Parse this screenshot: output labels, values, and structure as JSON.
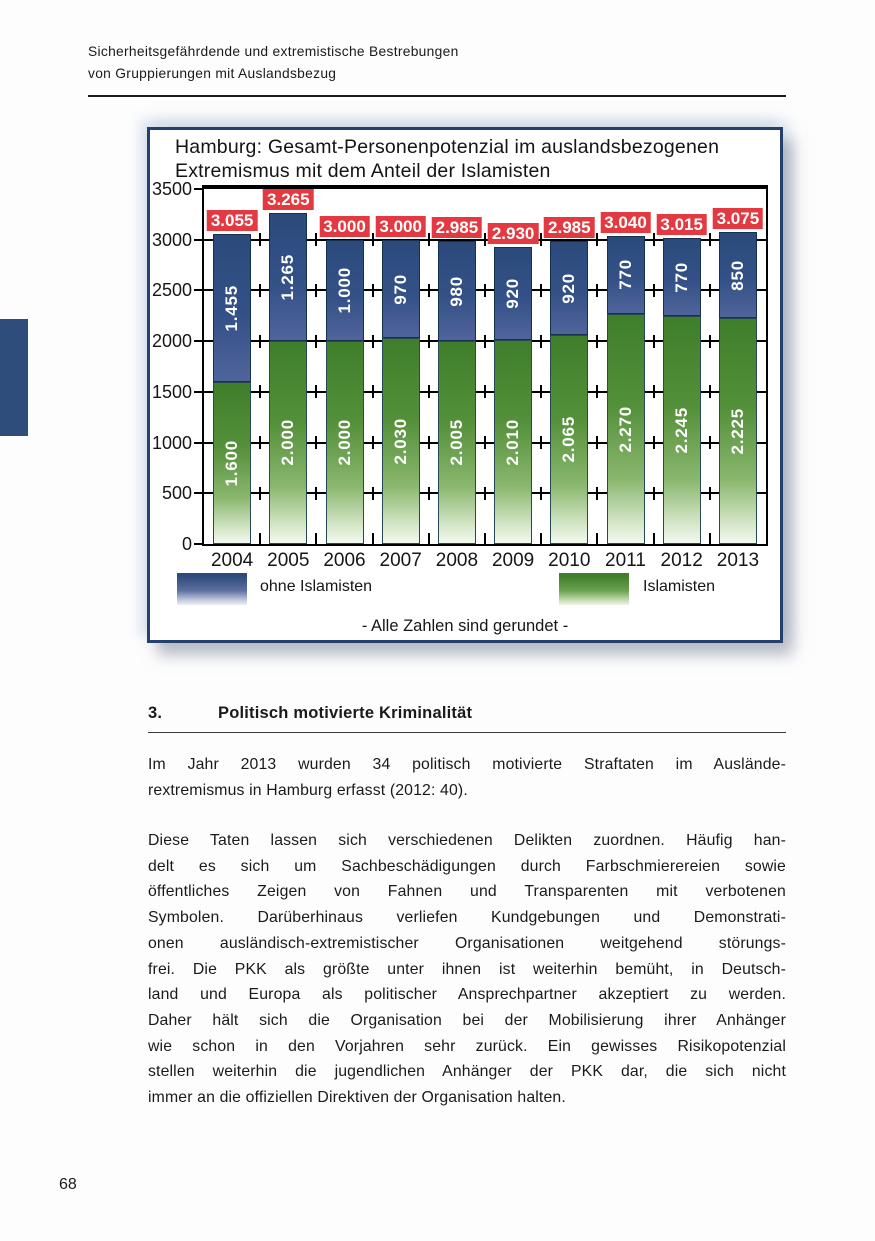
{
  "page": {
    "header_line1": "Sicherheitsgefährdende und extremistische Bestrebungen",
    "header_line2": "von Gruppierungen mit Auslandsbezug",
    "page_number": "68"
  },
  "chart": {
    "title_line1": "Hamburg: Gesamt-Personenpotenzial im auslandsbezogenen",
    "title_line2": "Extremismus mit dem Anteil der Islamisten",
    "footnote": "- Alle Zahlen sind gerundet -",
    "legend": [
      {
        "label": "ohne Islamisten",
        "color": "#2e4d7b"
      },
      {
        "label": "Islamisten",
        "color": "#4a8c33"
      }
    ]
  },
  "chart_data": {
    "type": "bar",
    "stacked": true,
    "title": "Hamburg: Gesamt-Personenpotenzial im auslandsbezogenen Extremismus mit dem Anteil der Islamisten",
    "xlabel": "",
    "ylabel": "",
    "ylim": [
      0,
      3500
    ],
    "ytick_step": 500,
    "yticks": [
      "0",
      "500",
      "1000",
      "1500",
      "2000",
      "2500",
      "3000",
      "3500"
    ],
    "grid": true,
    "legend_position": "bottom",
    "categories": [
      "2004",
      "2005",
      "2006",
      "2007",
      "2008",
      "2009",
      "2010",
      "2011",
      "2012",
      "2013"
    ],
    "series": [
      {
        "name": "Islamisten",
        "color": "#4a8c33",
        "values": [
          1600,
          2000,
          2000,
          2030,
          2005,
          2010,
          2065,
          2270,
          2245,
          2225
        ],
        "labels": [
          "1.600",
          "2.000",
          "2.000",
          "2.030",
          "2.005",
          "2.010",
          "2.065",
          "2.270",
          "2.245",
          "2.225"
        ]
      },
      {
        "name": "ohne Islamisten",
        "color": "#2e4d7b",
        "values": [
          1455,
          1265,
          1000,
          970,
          980,
          920,
          920,
          770,
          770,
          850
        ],
        "labels": [
          "1.455",
          "1.265",
          "1.000",
          "970",
          "980",
          "920",
          "920",
          "770",
          "770",
          "850"
        ]
      }
    ],
    "totals": [
      3055,
      3265,
      3000,
      3000,
      2985,
      2930,
      2985,
      3040,
      3015,
      3075
    ],
    "total_labels": [
      "3.055",
      "3.265",
      "3.000",
      "3.000",
      "2.985",
      "2.930",
      "2.985",
      "3.040",
      "3.015",
      "3.075"
    ],
    "total_label_color": "#e23a40"
  },
  "section": {
    "number": "3.",
    "title": "Politisch motivierte Kriminalität",
    "paragraph1_lines": [
      "Im Jahr 2013 wurden 34 politisch motivierte Straftaten im Auslände-",
      "rextremismus in Hamburg erfasst (2012: 40)."
    ],
    "paragraph2_lines": [
      "Diese Taten lassen sich verschiedenen Delikten zuordnen. Häufig han-",
      "delt es sich um Sachbeschädigungen durch Farbschmierereien sowie",
      "öffentliches Zeigen von Fahnen und Transparenten mit verbotenen",
      "Symbolen. Darüberhinaus verliefen Kundgebungen und Demonstrati-",
      "onen ausländisch-extremistischer Organisationen weitgehend störungs-",
      "frei. Die PKK als größte unter ihnen ist weiterhin bemüht, in Deutsch-",
      "land und Europa als politischer Ansprechpartner akzeptiert zu werden.",
      "Daher hält sich die Organisation bei der Mobilisierung ihrer Anhänger",
      "wie schon in den Vorjahren sehr zurück. Ein gewisses Risikopotenzial",
      "stellen weiterhin die jugendlichen Anhänger der PKK dar, die sich nicht",
      "immer an die offiziellen Direktiven der Organisation halten."
    ]
  }
}
